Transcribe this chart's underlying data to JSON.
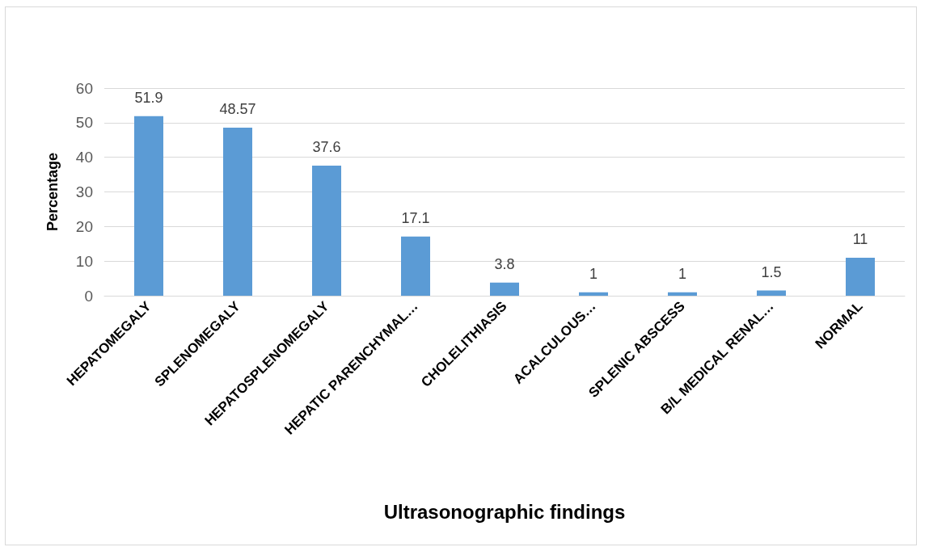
{
  "chart_data": {
    "type": "bar",
    "categories": [
      "HEPATOMEGALY",
      "SPLENOMEGALY",
      "HEPATOSPLENOMEGALY",
      "HEPATIC PARENCHYMAL…",
      "CHOLELITHIASIS",
      "ACALCULOUS…",
      "SPLENIC ABSCESS",
      "B/L MEDICAL RENAL…",
      "NORMAL"
    ],
    "values": [
      51.9,
      48.57,
      37.6,
      17.1,
      3.8,
      1,
      1,
      1.5,
      11
    ],
    "color": "#5b9bd5",
    "xlabel": "Ultrasonographic findings",
    "ylabel": "Percentage",
    "ylim": [
      0,
      60
    ],
    "yticks": [
      0,
      10,
      20,
      30,
      40,
      50,
      60
    ],
    "grid": "y",
    "data_labels": true
  }
}
